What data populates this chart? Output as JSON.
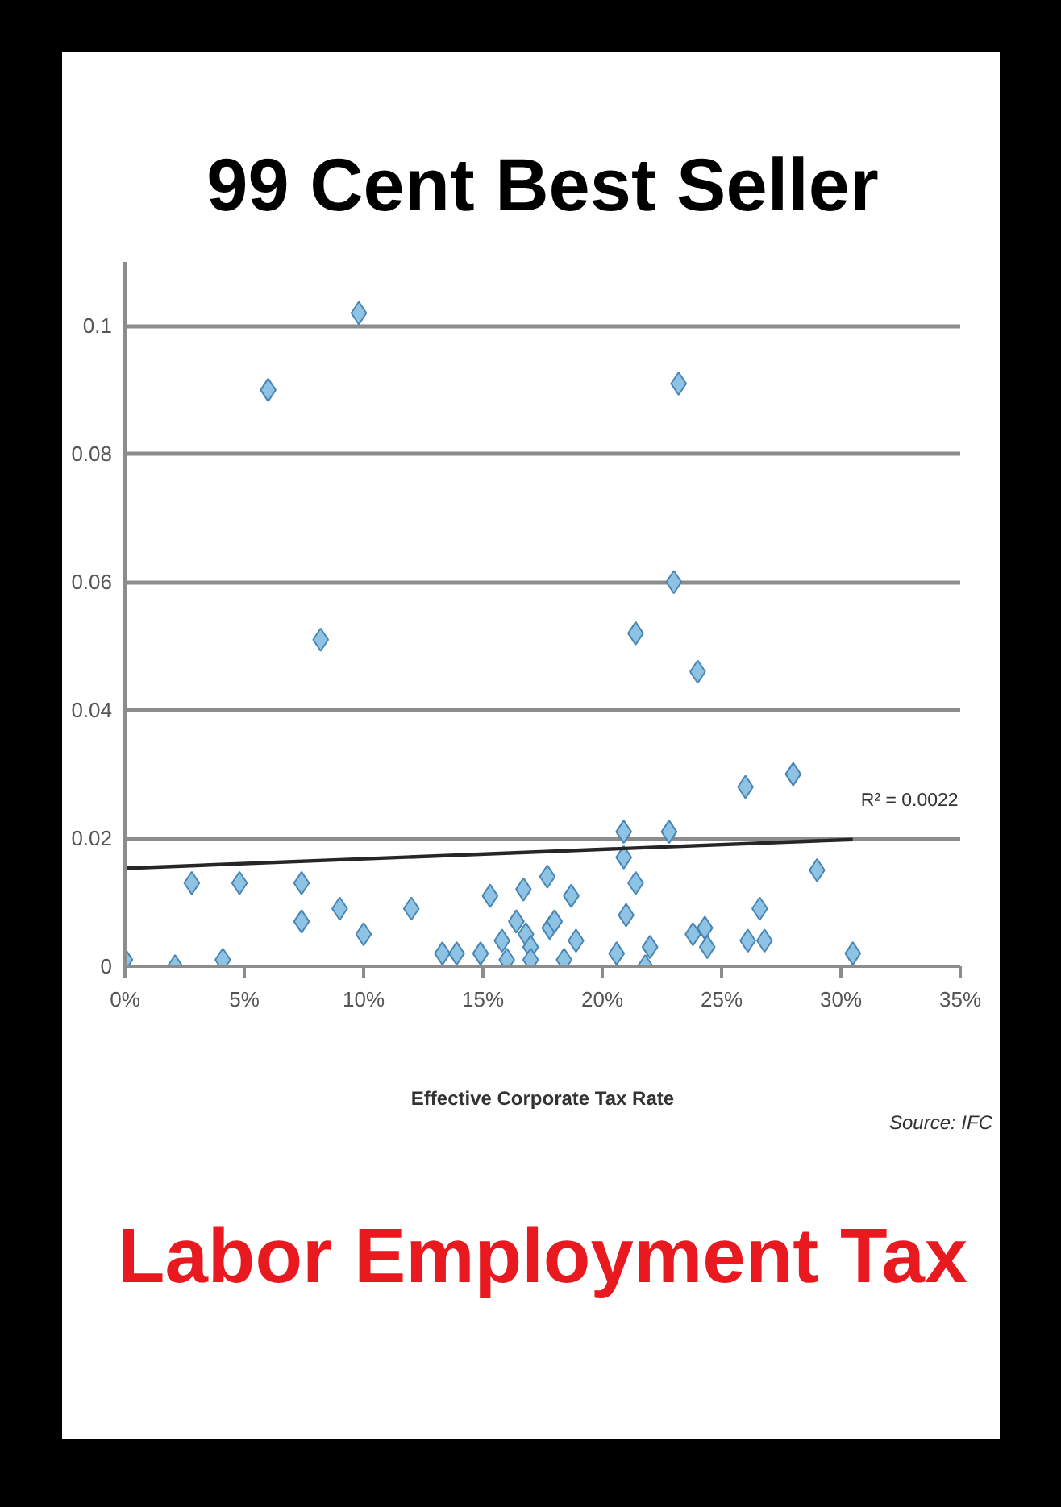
{
  "chart_data": {
    "type": "scatter",
    "title": "99 Cent Best Seller",
    "subtitle": "Labor Employment Tax",
    "xlabel": "Effective Corporate Tax Rate",
    "annotations": [
      {
        "text": "R² = 0.0022",
        "x": 30.5,
        "y": 0.0198
      },
      "Source: IFC"
    ],
    "xlim": [
      0,
      35
    ],
    "ylim": [
      0,
      0.11
    ],
    "xticks": [
      {
        "value": 0,
        "label": "0%"
      },
      {
        "value": 5,
        "label": "5%"
      },
      {
        "value": 10,
        "label": "10%"
      },
      {
        "value": 15,
        "label": "15%"
      },
      {
        "value": 20,
        "label": "20%"
      },
      {
        "value": 25,
        "label": "25%"
      },
      {
        "value": 30,
        "label": "30%"
      },
      {
        "value": 35,
        "label": "35%"
      }
    ],
    "yticks": [
      0,
      0.02,
      0.04,
      0.06,
      0.08,
      0.1
    ],
    "grid": "y",
    "marker": "diamond",
    "series": [
      {
        "color": "#8ec3e3",
        "x": [
          0,
          2.1,
          2.8,
          4.1,
          4.8,
          6.0,
          7.4,
          7.4,
          8.2,
          9.0,
          9.8,
          10.0,
          12.0,
          13.3,
          13.9,
          14.9,
          15.3,
          15.8,
          16.0,
          16.4,
          16.7,
          16.8,
          17.0,
          17.0,
          17.7,
          17.8,
          18.0,
          18.4,
          18.7,
          18.9,
          20.6,
          20.9,
          20.9,
          21.0,
          21.4,
          21.4,
          21.8,
          22.0,
          22.8,
          23.0,
          23.2,
          23.8,
          24.0,
          24.3,
          24.4,
          26.0,
          26.1,
          26.6,
          26.8,
          28.0,
          29.0,
          30.5
        ],
        "values": [
          0.001,
          0.0,
          0.013,
          0.001,
          0.013,
          0.09,
          0.013,
          0.007,
          0.051,
          0.009,
          0.102,
          0.005,
          0.009,
          0.002,
          0.002,
          0.002,
          0.011,
          0.004,
          0.001,
          0.007,
          0.012,
          0.005,
          0.003,
          0.001,
          0.014,
          0.006,
          0.007,
          0.001,
          0.011,
          0.004,
          0.002,
          0.021,
          0.017,
          0.008,
          0.013,
          0.052,
          0.0,
          0.003,
          0.021,
          0.06,
          0.091,
          0.005,
          0.046,
          0.006,
          0.003,
          0.028,
          0.004,
          0.009,
          0.004,
          0.03,
          0.015,
          0.002
        ]
      },
      {
        "type": "line",
        "color": "#262626",
        "marker": "none",
        "x": [
          0,
          30.5
        ],
        "values": [
          0.0153,
          0.0198
        ]
      }
    ]
  }
}
